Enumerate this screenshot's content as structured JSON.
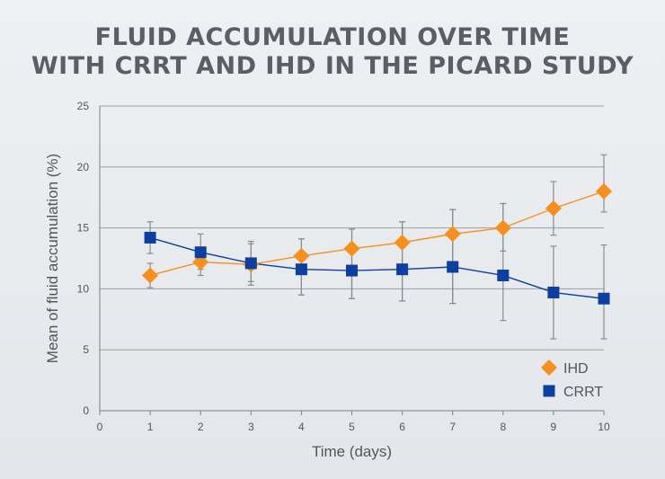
{
  "chart_data": {
    "type": "line",
    "title_lines": [
      "FLUID ACCUMULATION OVER TIME",
      "WITH CRRT AND IHD IN THE PICARD STUDY"
    ],
    "xlabel": "Time (days)",
    "ylabel": "Mean of fluid accumulation (%)",
    "xlim": [
      0,
      10
    ],
    "ylim": [
      0,
      25
    ],
    "x_ticks": [
      0,
      1,
      2,
      3,
      4,
      5,
      6,
      7,
      8,
      9,
      10
    ],
    "y_ticks": [
      0,
      5,
      10,
      15,
      20,
      25
    ],
    "grid": "horizontal",
    "legend_position": "bottom-right",
    "series": [
      {
        "name": "IHD",
        "marker": "diamond",
        "color": "#f5901e",
        "x": [
          1,
          2,
          3,
          4,
          5,
          6,
          7,
          8,
          9,
          10
        ],
        "y": [
          11.1,
          12.2,
          12.0,
          12.7,
          13.3,
          13.8,
          14.5,
          15.0,
          16.6,
          18.0
        ],
        "err_low": [
          10.1,
          11.1,
          10.3,
          9.5,
          9.2,
          9.0,
          8.8,
          13.1,
          14.4,
          16.3
        ],
        "err_high": [
          12.1,
          13.3,
          13.7,
          14.1,
          14.9,
          15.5,
          16.5,
          17.0,
          18.8,
          21.0
        ]
      },
      {
        "name": "CRRT",
        "marker": "square",
        "color": "#0d3fa0",
        "x": [
          1,
          2,
          3,
          4,
          5,
          6,
          7,
          8,
          9,
          10
        ],
        "y": [
          14.2,
          13.0,
          12.1,
          11.6,
          11.5,
          11.6,
          11.8,
          11.1,
          9.7,
          9.2
        ],
        "err_low": [
          12.9,
          11.6,
          10.6,
          9.5,
          9.2,
          9.0,
          8.8,
          7.4,
          5.9,
          5.9
        ],
        "err_high": [
          15.5,
          14.5,
          13.9,
          14.1,
          14.9,
          15.5,
          16.5,
          17.0,
          13.5,
          13.6
        ]
      }
    ]
  }
}
